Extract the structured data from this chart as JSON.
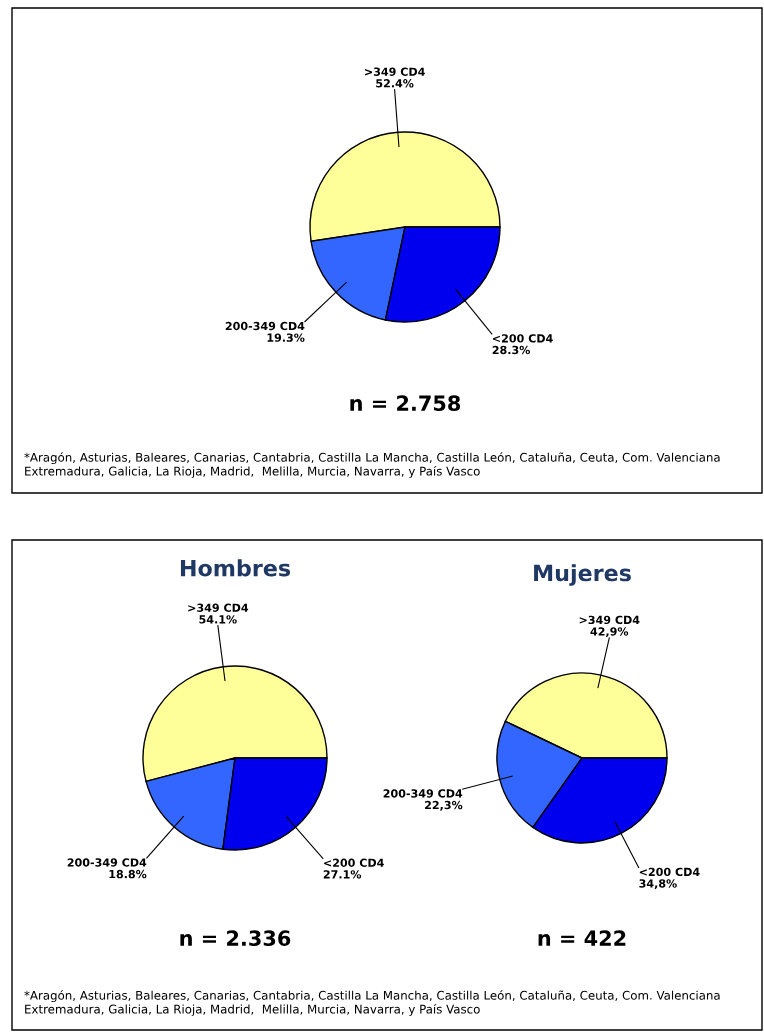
{
  "chart_data": [
    {
      "type": "pie",
      "categories": [
        ">349 CD4",
        "200-349 CD4",
        "<200 CD4"
      ],
      "values": [
        52.4,
        19.3,
        28.3
      ],
      "value_labels": [
        "52.4%",
        "19.3%",
        "28.3%"
      ],
      "colors": [
        "#ffff99",
        "#3366ff",
        "#0000ee"
      ],
      "legend": false,
      "annotations": [
        "n = 2.758",
        "*Aragón, Asturias, Baleares, Canarias, Cantabria, Castilla La Mancha, Castilla León, Cataluña, Ceuta, Com. Valenciana Extremadura, Galicia, La Rioja, Madrid,  Melilla, Murcia, Navarra, y País Vasco"
      ]
    },
    {
      "type": "pie",
      "title": "Hombres",
      "categories": [
        ">349 CD4",
        "200-349 CD4",
        "<200 CD4"
      ],
      "values": [
        54.1,
        18.8,
        27.1
      ],
      "value_labels": [
        "54.1%",
        "18.8%",
        "27.1%"
      ],
      "colors": [
        "#ffff99",
        "#3366ff",
        "#0000ee"
      ],
      "legend": false,
      "annotations": [
        "n = 2.336"
      ]
    },
    {
      "type": "pie",
      "title": "Mujeres",
      "categories": [
        ">349 CD4",
        "200-349 CD4",
        "<200 CD4"
      ],
      "values": [
        42.9,
        22.3,
        34.8
      ],
      "value_labels": [
        "42,9%",
        "22,3%",
        "34,8%"
      ],
      "colors": [
        "#ffff99",
        "#3366ff",
        "#0000ee"
      ],
      "legend": false,
      "annotations": [
        "n = 422",
        "*Aragón, Asturias, Baleares, Canarias, Cantabria, Castilla La Mancha, Castilla León, Cataluña, Ceuta, Com. Valenciana Extremadura, Galicia, La Rioja, Madrid,  Melilla, Murcia, Navarra, y País Vasco"
      ]
    }
  ]
}
